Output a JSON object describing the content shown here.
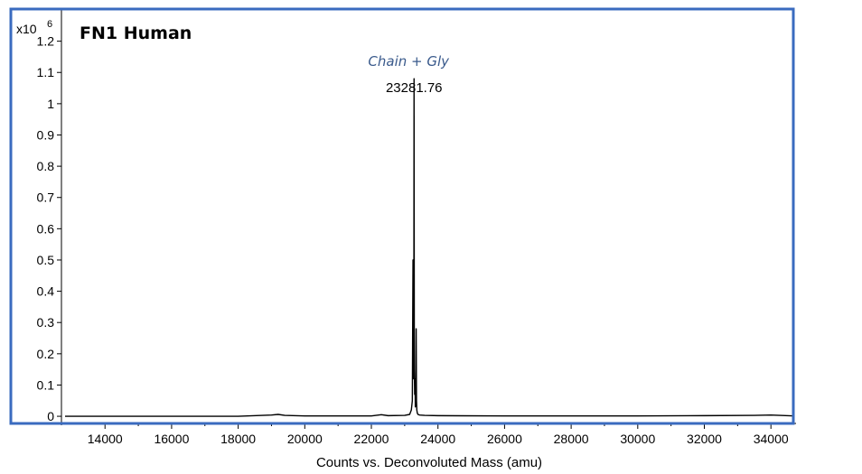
{
  "chart_data": {
    "type": "line",
    "title": "FN1 Human",
    "xlabel": "Counts vs. Deconvoluted Mass (amu)",
    "ylabel": "",
    "y_multiplier": "x10",
    "y_multiplier_exp": "6",
    "xlim": [
      12800,
      34700
    ],
    "ylim": [
      -0.02,
      1.3
    ],
    "x_ticks": [
      14000,
      16000,
      18000,
      20000,
      22000,
      24000,
      26000,
      28000,
      30000,
      32000,
      34000
    ],
    "y_ticks": [
      0,
      0.1,
      0.2,
      0.3,
      0.4,
      0.5,
      0.6,
      0.7,
      0.8,
      0.9,
      1,
      1.1,
      1.2
    ],
    "grid": false,
    "series": [
      {
        "color": "#000000",
        "x": [
          12800,
          14000,
          16000,
          18000,
          19000,
          19200,
          19400,
          20000,
          22000,
          22300,
          22500,
          23000,
          23150,
          23200,
          23230,
          23250,
          23265,
          23275,
          23281.76,
          23290,
          23300,
          23310,
          23320,
          23330,
          23345,
          23355,
          23365,
          23380,
          23400,
          23450,
          23600,
          24000,
          26000,
          28000,
          30000,
          32000,
          33500,
          34000,
          34700
        ],
        "values": [
          0,
          0,
          0,
          0,
          0.004,
          0.006,
          0.003,
          0.001,
          0.001,
          0.005,
          0.002,
          0.003,
          0.006,
          0.02,
          0.05,
          0.5,
          0.12,
          0.25,
          1.08,
          0.15,
          0.07,
          0.12,
          0.03,
          0.04,
          0.28,
          0.05,
          0.02,
          0.01,
          0.006,
          0.004,
          0.003,
          0.002,
          0.001,
          0.001,
          0.001,
          0.002,
          0.003,
          0.004,
          0.001
        ]
      }
    ],
    "annotations": [
      {
        "text": "Chain + Gly",
        "x": 23281.76,
        "y": 1.2
      },
      {
        "text": "23281.76",
        "x": 23281.76,
        "y": 1.11
      }
    ],
    "frame_color": "#3a6bbf"
  }
}
